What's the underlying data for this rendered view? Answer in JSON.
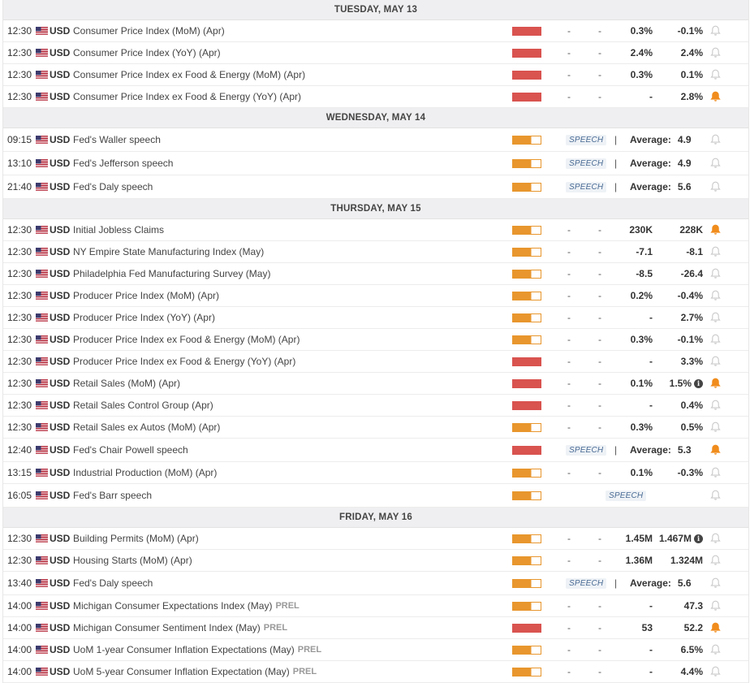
{
  "colors": {
    "high_impact": "#d9534f",
    "medium_impact": "#e8962d",
    "bell_active": "#f08c1c",
    "bell_inactive": "#c9c9c9"
  },
  "days": [
    {
      "label": "TUESDAY, MAY 13",
      "events": [
        {
          "time": "12:30",
          "currency": "USD",
          "name": "Consumer Price Index (MoM) (Apr)",
          "impact": "high",
          "actual": "-",
          "deviation": "-",
          "consensus": "0.3%",
          "previous": "-0.1%",
          "alert": false
        },
        {
          "time": "12:30",
          "currency": "USD",
          "name": "Consumer Price Index (YoY) (Apr)",
          "impact": "high",
          "actual": "-",
          "deviation": "-",
          "consensus": "2.4%",
          "previous": "2.4%",
          "alert": false
        },
        {
          "time": "12:30",
          "currency": "USD",
          "name": "Consumer Price Index ex Food & Energy (MoM) (Apr)",
          "impact": "high",
          "actual": "-",
          "deviation": "-",
          "consensus": "0.3%",
          "previous": "0.1%",
          "alert": false
        },
        {
          "time": "12:30",
          "currency": "USD",
          "name": "Consumer Price Index ex Food & Energy (YoY) (Apr)",
          "impact": "high",
          "actual": "-",
          "deviation": "-",
          "consensus": "-",
          "previous": "2.8%",
          "alert": true
        }
      ]
    },
    {
      "label": "WEDNESDAY, MAY 14",
      "events": [
        {
          "time": "09:15",
          "currency": "USD",
          "name": "Fed's Waller speech",
          "impact": "medium",
          "speech": "SPEECH",
          "avg_label": "Average:",
          "avg_value": "4.9",
          "alert": false
        },
        {
          "time": "13:10",
          "currency": "USD",
          "name": "Fed's Jefferson speech",
          "impact": "medium",
          "speech": "SPEECH",
          "avg_label": "Average:",
          "avg_value": "4.9",
          "alert": false
        },
        {
          "time": "21:40",
          "currency": "USD",
          "name": "Fed's Daly speech",
          "impact": "medium",
          "speech": "SPEECH",
          "avg_label": "Average:",
          "avg_value": "5.6",
          "alert": false
        }
      ]
    },
    {
      "label": "THURSDAY, MAY 15",
      "events": [
        {
          "time": "12:30",
          "currency": "USD",
          "name": "Initial Jobless Claims",
          "impact": "medium",
          "actual": "-",
          "deviation": "-",
          "consensus": "230K",
          "previous": "228K",
          "alert": true
        },
        {
          "time": "12:30",
          "currency": "USD",
          "name": "NY Empire State Manufacturing Index (May)",
          "impact": "medium",
          "actual": "-",
          "deviation": "-",
          "consensus": "-7.1",
          "previous": "-8.1",
          "alert": false
        },
        {
          "time": "12:30",
          "currency": "USD",
          "name": "Philadelphia Fed Manufacturing Survey (May)",
          "impact": "medium",
          "actual": "-",
          "deviation": "-",
          "consensus": "-8.5",
          "previous": "-26.4",
          "alert": false
        },
        {
          "time": "12:30",
          "currency": "USD",
          "name": "Producer Price Index (MoM) (Apr)",
          "impact": "medium",
          "actual": "-",
          "deviation": "-",
          "consensus": "0.2%",
          "previous": "-0.4%",
          "alert": false
        },
        {
          "time": "12:30",
          "currency": "USD",
          "name": "Producer Price Index (YoY) (Apr)",
          "impact": "medium",
          "actual": "-",
          "deviation": "-",
          "consensus": "-",
          "previous": "2.7%",
          "alert": false
        },
        {
          "time": "12:30",
          "currency": "USD",
          "name": "Producer Price Index ex Food & Energy (MoM) (Apr)",
          "impact": "medium",
          "actual": "-",
          "deviation": "-",
          "consensus": "0.3%",
          "previous": "-0.1%",
          "alert": false
        },
        {
          "time": "12:30",
          "currency": "USD",
          "name": "Producer Price Index ex Food & Energy (YoY) (Apr)",
          "impact": "high",
          "actual": "-",
          "deviation": "-",
          "consensus": "-",
          "previous": "3.3%",
          "alert": false
        },
        {
          "time": "12:30",
          "currency": "USD",
          "name": "Retail Sales (MoM) (Apr)",
          "impact": "high",
          "actual": "-",
          "deviation": "-",
          "consensus": "0.1%",
          "previous": "1.5%",
          "info": true,
          "alert": true
        },
        {
          "time": "12:30",
          "currency": "USD",
          "name": "Retail Sales Control Group (Apr)",
          "impact": "high",
          "actual": "-",
          "deviation": "-",
          "consensus": "-",
          "previous": "0.4%",
          "alert": false
        },
        {
          "time": "12:30",
          "currency": "USD",
          "name": "Retail Sales ex Autos (MoM) (Apr)",
          "impact": "medium",
          "actual": "-",
          "deviation": "-",
          "consensus": "0.3%",
          "previous": "0.5%",
          "alert": false
        },
        {
          "time": "12:40",
          "currency": "USD",
          "name": "Fed's Chair Powell speech",
          "impact": "high",
          "speech": "SPEECH",
          "avg_label": "Average:",
          "avg_value": "5.3",
          "alert": true
        },
        {
          "time": "13:15",
          "currency": "USD",
          "name": "Industrial Production (MoM) (Apr)",
          "impact": "medium",
          "actual": "-",
          "deviation": "-",
          "consensus": "0.1%",
          "previous": "-0.3%",
          "alert": false
        },
        {
          "time": "16:05",
          "currency": "USD",
          "name": "Fed's Barr speech",
          "impact": "medium",
          "speech_only": "SPEECH",
          "alert": false
        }
      ]
    },
    {
      "label": "FRIDAY, MAY 16",
      "events": [
        {
          "time": "12:30",
          "currency": "USD",
          "name": "Building Permits (MoM) (Apr)",
          "impact": "medium",
          "actual": "-",
          "deviation": "-",
          "consensus": "1.45M",
          "previous": "1.467M",
          "info": true,
          "alert": false
        },
        {
          "time": "12:30",
          "currency": "USD",
          "name": "Housing Starts (MoM) (Apr)",
          "impact": "medium",
          "actual": "-",
          "deviation": "-",
          "consensus": "1.36M",
          "previous": "1.324M",
          "alert": false
        },
        {
          "time": "13:40",
          "currency": "USD",
          "name": "Fed's Daly speech",
          "impact": "medium",
          "speech": "SPEECH",
          "avg_label": "Average:",
          "avg_value": "5.6",
          "alert": false
        },
        {
          "time": "14:00",
          "currency": "USD",
          "name": "Michigan Consumer Expectations Index (May)",
          "prel": "PREL",
          "impact": "medium",
          "actual": "-",
          "deviation": "-",
          "consensus": "-",
          "previous": "47.3",
          "alert": false
        },
        {
          "time": "14:00",
          "currency": "USD",
          "name": "Michigan Consumer Sentiment Index (May)",
          "prel": "PREL",
          "impact": "high",
          "actual": "-",
          "deviation": "-",
          "consensus": "53",
          "previous": "52.2",
          "alert": true
        },
        {
          "time": "14:00",
          "currency": "USD",
          "name": "UoM 1-year Consumer Inflation Expectations (May)",
          "prel": "PREL",
          "impact": "medium",
          "actual": "-",
          "deviation": "-",
          "consensus": "-",
          "previous": "6.5%",
          "alert": false
        },
        {
          "time": "14:00",
          "currency": "USD",
          "name": "UoM 5-year Consumer Inflation Expectation (May)",
          "prel": "PREL",
          "impact": "medium",
          "actual": "-",
          "deviation": "-",
          "consensus": "-",
          "previous": "4.4%",
          "alert": false
        }
      ]
    }
  ]
}
